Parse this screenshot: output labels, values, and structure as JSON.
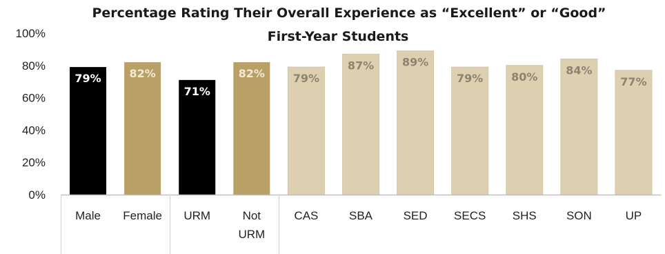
{
  "chart_data": {
    "type": "bar",
    "title": "Percentage Rating Their Overall Experience as “Excellent” or “Good”",
    "subtitle": "First-Year  Students",
    "categories": [
      [
        "Male"
      ],
      [
        "Female"
      ],
      [
        "URM"
      ],
      [
        "Not",
        "URM"
      ],
      [
        "CAS"
      ],
      [
        "SBA"
      ],
      [
        "SED"
      ],
      [
        "SECS"
      ],
      [
        "SHS"
      ],
      [
        "SON"
      ],
      [
        "UP"
      ]
    ],
    "values": [
      79,
      82,
      71,
      82,
      79,
      87,
      89,
      79,
      80,
      84,
      77
    ],
    "data_labels": [
      "79%",
      "82%",
      "71%",
      "82%",
      "79%",
      "87%",
      "89%",
      "79%",
      "80%",
      "84%",
      "77%"
    ],
    "bar_colors": [
      "#000000",
      "#b9a067",
      "#000000",
      "#b9a067",
      "#dcd0b0",
      "#dcd0b0",
      "#dcd0b0",
      "#dcd0b0",
      "#dcd0b0",
      "#dcd0b0",
      "#dcd0b0"
    ],
    "label_colors": [
      "#ffffff",
      "#f3ead2",
      "#ffffff",
      "#f3ead2",
      "#8c8370",
      "#8c8370",
      "#8c8370",
      "#8c8370",
      "#8c8370",
      "#8c8370",
      "#8c8370"
    ],
    "yticks": [
      "0%",
      "20%",
      "40%",
      "60%",
      "80%",
      "100%"
    ],
    "ylim": [
      0,
      100
    ],
    "grid": false,
    "group_separators_after": [
      1,
      3
    ]
  }
}
